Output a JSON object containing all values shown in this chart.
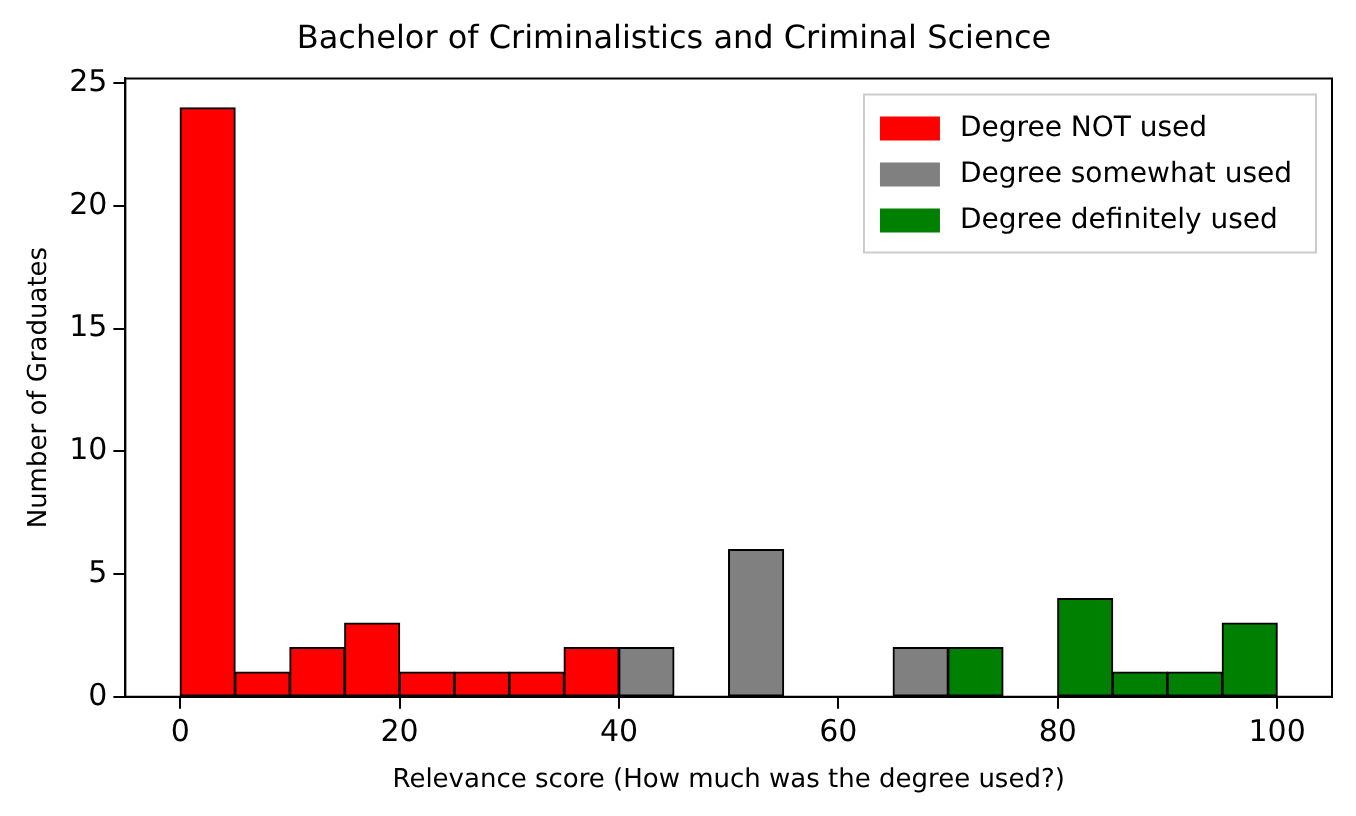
{
  "chart_data": {
    "type": "histogram",
    "title": "Bachelor of Criminalistics and Criminal Science",
    "xlabel": "Relevance score (How much was the degree used?)",
    "ylabel": "Number of Graduates",
    "bins": [
      0,
      5,
      10,
      15,
      20,
      25,
      30,
      35,
      40,
      45,
      50,
      55,
      60,
      65,
      70,
      75,
      80,
      85,
      90,
      95,
      100
    ],
    "series": [
      {
        "name": "Degree NOT used",
        "color": "#ff0000",
        "values": [
          24,
          1,
          2,
          3,
          1,
          1,
          1,
          2,
          null,
          null,
          null,
          null,
          null,
          null,
          null,
          null,
          null,
          null,
          null,
          null
        ]
      },
      {
        "name": "Degree somewhat used",
        "color": "#808080",
        "values": [
          null,
          null,
          null,
          null,
          null,
          null,
          null,
          null,
          2,
          0,
          6,
          0,
          0,
          2,
          null,
          null,
          null,
          null,
          null,
          null
        ]
      },
      {
        "name": "Degree definitely used",
        "color": "#008000",
        "values": [
          null,
          null,
          null,
          null,
          null,
          null,
          null,
          null,
          null,
          null,
          null,
          null,
          null,
          null,
          2,
          0,
          4,
          1,
          1,
          3
        ]
      }
    ],
    "xlim": [
      -5,
      105
    ],
    "xticks": [
      0,
      20,
      40,
      60,
      80,
      100
    ],
    "ylim": [
      0,
      25.2
    ],
    "yticks": [
      0,
      5,
      10,
      15,
      20,
      25
    ],
    "grid": false,
    "legend": "top right"
  }
}
